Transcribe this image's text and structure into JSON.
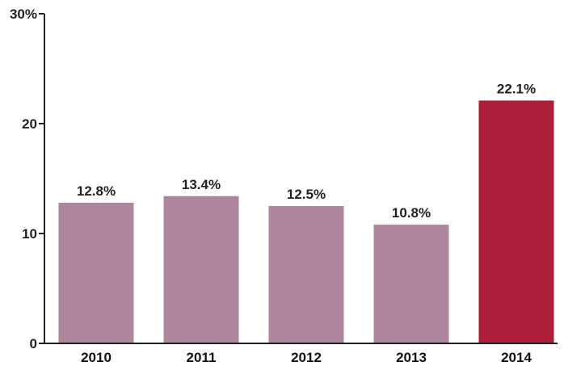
{
  "chart_data": {
    "type": "bar",
    "title": "",
    "xlabel": "",
    "ylabel": "",
    "categories": [
      "2010",
      "2011",
      "2012",
      "2013",
      "2014"
    ],
    "values": [
      12.8,
      13.4,
      12.5,
      10.8,
      22.1
    ],
    "data_labels": [
      "12.8%",
      "13.4%",
      "12.5%",
      "10.8%",
      "22.1%"
    ],
    "ylim": [
      0,
      30
    ],
    "yticks": [
      0,
      10,
      20,
      30
    ],
    "ytick_labels": [
      "0",
      "10",
      "20",
      "30%"
    ],
    "grid": false,
    "legend": "none",
    "colors": {
      "default_bar": "#ad859c",
      "highlight_bar": "#ad1f3a",
      "axis": "#222222"
    },
    "highlight_index": 4
  }
}
